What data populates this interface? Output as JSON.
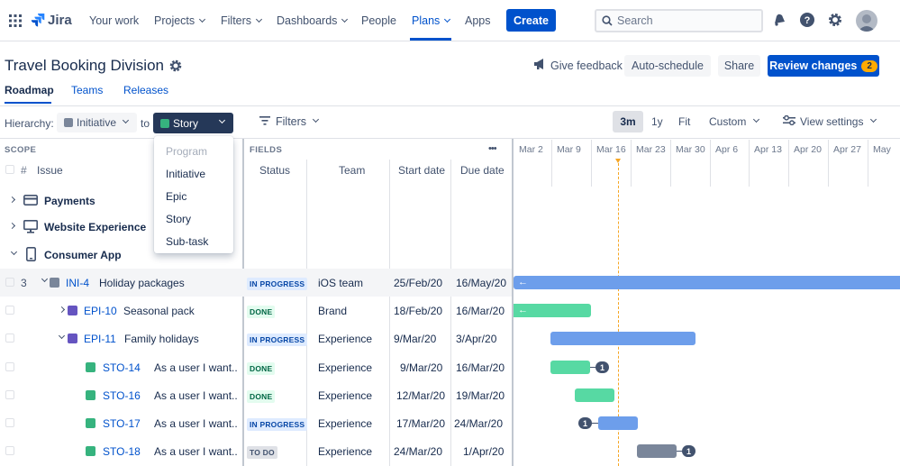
{
  "nav": {
    "brand": "Jira",
    "items": [
      "Your work",
      "Projects",
      "Filters",
      "Dashboards",
      "People",
      "Plans",
      "Apps"
    ],
    "create": "Create",
    "search_placeholder": "Search"
  },
  "page": {
    "title": "Travel Booking Division",
    "give_feedback": "Give feedback",
    "auto_schedule": "Auto-schedule",
    "share": "Share",
    "review_changes": "Review changes",
    "review_count": "2",
    "tabs": [
      "Roadmap",
      "Teams",
      "Releases"
    ]
  },
  "toolbar": {
    "hierarchy_label": "Hierarchy:",
    "from_value": "Initiative",
    "to_label": "to",
    "to_value": "Story",
    "filters": "Filters",
    "ranges": [
      "3m",
      "1y",
      "Fit",
      "Custom"
    ],
    "view_settings": "View settings"
  },
  "dropdown": {
    "options": [
      "Program",
      "Initiative",
      "Epic",
      "Story",
      "Sub-task"
    ],
    "disabled": "Program"
  },
  "scope": {
    "header": "SCOPE",
    "hash": "#",
    "issue": "Issue",
    "groups": [
      "Payments",
      "Website Experience",
      "Consumer App"
    ]
  },
  "fields": {
    "header": "FIELDS",
    "menu": "•••",
    "columns": [
      "Status",
      "Team",
      "Start date",
      "Due date"
    ]
  },
  "timeline": {
    "dates": [
      "Mar 2",
      "Mar 9",
      "Mar 16",
      "Mar 23",
      "Mar 30",
      "Apr 6",
      "Apr 13",
      "Apr 20",
      "Apr 27",
      "May"
    ]
  },
  "rows": [
    {
      "num": "3",
      "key": "INI-4",
      "summary": "Holiday packages",
      "status": "IN PROGRESS",
      "team": "iOS team",
      "start": "25/Feb/20",
      "due": "16/May/20"
    },
    {
      "key": "EPI-10",
      "summary": "Seasonal pack",
      "status": "DONE",
      "team": "Brand",
      "start": "18/Feb/20",
      "due": "16/Mar/20"
    },
    {
      "key": "EPI-11",
      "summary": "Family holidays",
      "status": "IN PROGRESS",
      "team": "Experience",
      "start": "9/Mar/20",
      "due": "3/Apr/20"
    },
    {
      "key": "STO-14",
      "summary": "As a user I want..",
      "status": "DONE",
      "team": "Experience",
      "start": "9/Mar/20",
      "due": "16/Mar/20",
      "badge": "1"
    },
    {
      "key": "STO-16",
      "summary": "As a user I want..",
      "status": "DONE",
      "team": "Experience",
      "start": "12/Mar/20",
      "due": "19/Mar/20"
    },
    {
      "key": "STO-17",
      "summary": "As a user I want..",
      "status": "IN PROGRESS",
      "team": "Experience",
      "start": "17/Mar/20",
      "due": "24/Mar/20",
      "badge": "1"
    },
    {
      "key": "STO-18",
      "summary": "As a user I want..",
      "status": "TO DO",
      "team": "Experience",
      "start": "24/Mar/20",
      "due": "1/Apr/20",
      "badge": "1"
    }
  ],
  "colors": {
    "primary": "#0052cc",
    "epic": "#6554c0",
    "story": "#36b37e",
    "bar_blue": "#6d9eeb",
    "bar_green": "#57d9a3",
    "bar_grey": "#7a869a",
    "today": "#f6a623"
  }
}
